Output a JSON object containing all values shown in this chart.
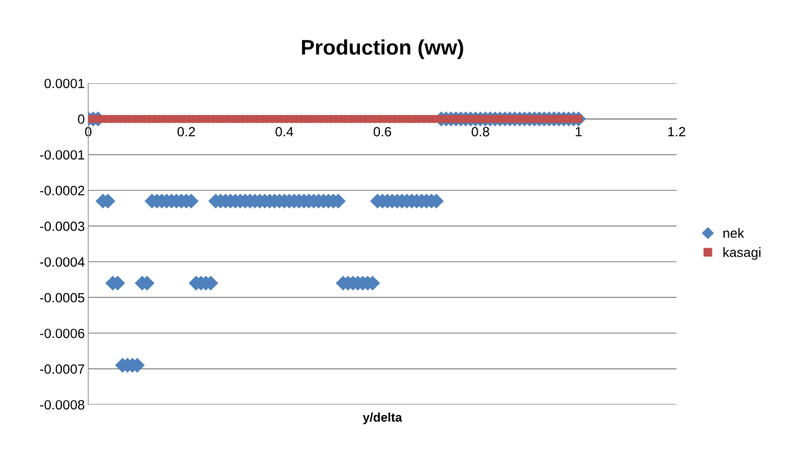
{
  "chart_data": {
    "type": "scatter",
    "title": "Production (ww)",
    "xlabel": "y/delta",
    "x": [
      0,
      0.01,
      0.02,
      0.03,
      0.04,
      0.05,
      0.06,
      0.07,
      0.08,
      0.09,
      0.1,
      0.11,
      0.12,
      0.13,
      0.14,
      0.15,
      0.16,
      0.17,
      0.18,
      0.19,
      0.2,
      0.21,
      0.22,
      0.23,
      0.24,
      0.25,
      0.26,
      0.27,
      0.28,
      0.29,
      0.3,
      0.31,
      0.32,
      0.33,
      0.34,
      0.35,
      0.36,
      0.37,
      0.38,
      0.39,
      0.4,
      0.41,
      0.42,
      0.43,
      0.44,
      0.45,
      0.46,
      0.47,
      0.48,
      0.49,
      0.5,
      0.51,
      0.52,
      0.53,
      0.54,
      0.55,
      0.56,
      0.57,
      0.58,
      0.59,
      0.6,
      0.61,
      0.62,
      0.63,
      0.64,
      0.65,
      0.66,
      0.67,
      0.68,
      0.69,
      0.7,
      0.71,
      0.72,
      0.73,
      0.74,
      0.75,
      0.76,
      0.77,
      0.78,
      0.79,
      0.8,
      0.81,
      0.82,
      0.83,
      0.84,
      0.85,
      0.86,
      0.87,
      0.88,
      0.89,
      0.9,
      0.91,
      0.92,
      0.93,
      0.94,
      0.95,
      0.96,
      0.97,
      0.98,
      0.99,
      1
    ],
    "series": [
      {
        "name": "nek",
        "color": "#4f81bd",
        "marker": "diamond",
        "values": [
          0,
          0,
          0,
          -0.00023,
          -0.00023,
          -0.00046,
          -0.00046,
          -0.00069,
          -0.00069,
          -0.00069,
          -0.00069,
          -0.00046,
          -0.00046,
          -0.00023,
          -0.00023,
          -0.00023,
          -0.00023,
          -0.00023,
          -0.00023,
          -0.00023,
          -0.00023,
          -0.00023,
          -0.00046,
          -0.00046,
          -0.00046,
          -0.00046,
          -0.00023,
          -0.00023,
          -0.00023,
          -0.00023,
          -0.00023,
          -0.00023,
          -0.00023,
          -0.00023,
          -0.00023,
          -0.00023,
          -0.00023,
          -0.00023,
          -0.00023,
          -0.00023,
          -0.00023,
          -0.00023,
          -0.00023,
          -0.00023,
          -0.00023,
          -0.00023,
          -0.00023,
          -0.00023,
          -0.00023,
          -0.00023,
          -0.00023,
          -0.00023,
          -0.00046,
          -0.00046,
          -0.00046,
          -0.00046,
          -0.00046,
          -0.00046,
          -0.00046,
          -0.00023,
          -0.00023,
          -0.00023,
          -0.00023,
          -0.00023,
          -0.00023,
          -0.00023,
          -0.00023,
          -0.00023,
          -0.00023,
          -0.00023,
          -0.00023,
          -0.00023,
          0,
          0,
          0,
          0,
          0,
          0,
          0,
          0,
          0,
          0,
          0,
          0,
          0,
          0,
          0,
          0,
          0,
          0,
          0,
          0,
          0,
          0,
          0,
          0,
          0,
          0,
          0,
          0,
          0
        ]
      },
      {
        "name": "kasagi",
        "color": "#c0504d",
        "marker": "square",
        "values": [
          0,
          0,
          0,
          0,
          0,
          0,
          0,
          0,
          0,
          0,
          0,
          0,
          0,
          0,
          0,
          0,
          0,
          0,
          0,
          0,
          0,
          0,
          0,
          0,
          0,
          0,
          0,
          0,
          0,
          0,
          0,
          0,
          0,
          0,
          0,
          0,
          0,
          0,
          0,
          0,
          0,
          0,
          0,
          0,
          0,
          0,
          0,
          0,
          0,
          0,
          0,
          0,
          0,
          0,
          0,
          0,
          0,
          0,
          0,
          0,
          0,
          0,
          0,
          0,
          0,
          0,
          0,
          0,
          0,
          0,
          0,
          0,
          0,
          0,
          0,
          0,
          0,
          0,
          0,
          0,
          0,
          0,
          0,
          0,
          0,
          0,
          0,
          0,
          0,
          0,
          0,
          0,
          0,
          0,
          0,
          0,
          0,
          0,
          0,
          0,
          0
        ]
      }
    ],
    "xlim": [
      0,
      1.2
    ],
    "xticks": [
      0,
      0.2,
      0.4,
      0.6,
      0.8,
      1,
      1.2
    ],
    "ylim": [
      -0.0008,
      0.0001
    ],
    "yticks": [
      -0.0008,
      -0.0007,
      -0.0006,
      -0.0005,
      -0.0004,
      -0.0003,
      -0.0002,
      -0.0001,
      0,
      0.0001
    ],
    "grid": "y",
    "legend": "right"
  }
}
